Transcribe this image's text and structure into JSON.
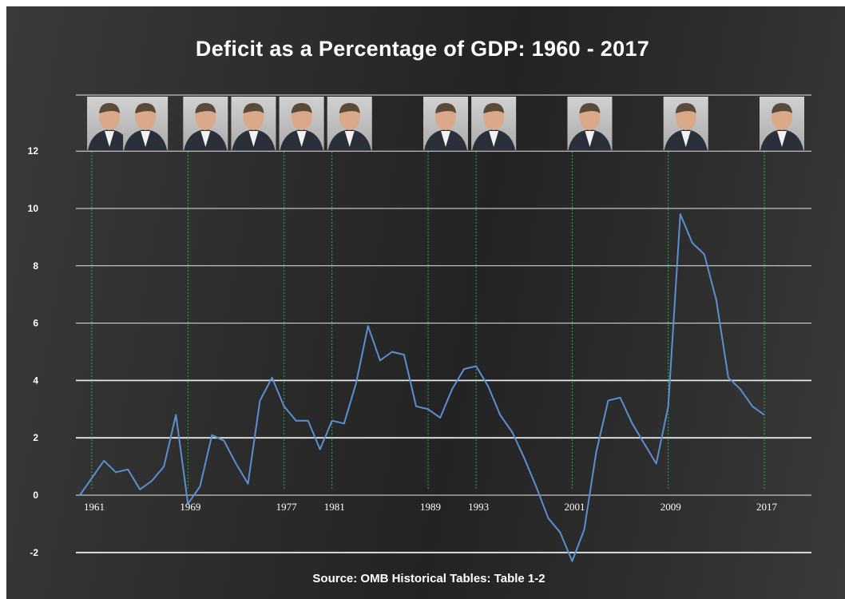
{
  "chart_data": {
    "type": "line",
    "title": "Deficit as a Percentage of GDP: 1960 - 2017",
    "source": "Source: OMB Historical Tables: Table 1-2",
    "xlabel": "",
    "ylabel": "",
    "ylim": [
      -2,
      12
    ],
    "xlim": [
      1960,
      2017
    ],
    "yticks": [
      -2,
      0,
      2,
      4,
      6,
      8,
      10,
      12
    ],
    "xticks": [
      1961,
      1969,
      1977,
      1981,
      1989,
      1993,
      2001,
      2009,
      2017
    ],
    "grid": "horizontal",
    "legend": "none",
    "line_color": "#5b8fd1",
    "term_line_color": "#2eaa4a",
    "administration_starts": [
      1961,
      1969,
      1977,
      1981,
      1989,
      1993,
      2001,
      2009,
      2017
    ],
    "portraits": [
      {
        "name": "portrait-kennedy",
        "year": 1961
      },
      {
        "name": "portrait-johnson",
        "year": 1964
      },
      {
        "name": "portrait-nixon",
        "year": 1969
      },
      {
        "name": "portrait-ford",
        "year": 1973
      },
      {
        "name": "portrait-carter",
        "year": 1977
      },
      {
        "name": "portrait-reagan",
        "year": 1981
      },
      {
        "name": "portrait-bush-sr",
        "year": 1989
      },
      {
        "name": "portrait-clinton",
        "year": 1993
      },
      {
        "name": "portrait-bush-jr",
        "year": 2001
      },
      {
        "name": "portrait-obama",
        "year": 2009
      },
      {
        "name": "portrait-trump",
        "year": 2017
      }
    ],
    "series": [
      {
        "x": [
          1960,
          1961,
          1962,
          1963,
          1964,
          1965,
          1966,
          1967,
          1968,
          1969,
          1970,
          1971,
          1972,
          1973,
          1974,
          1975,
          1976,
          1977,
          1978,
          1979,
          1980,
          1981,
          1982,
          1983,
          1984,
          1985,
          1986,
          1987,
          1988,
          1989,
          1990,
          1991,
          1992,
          1993,
          1994,
          1995,
          1996,
          1997,
          1998,
          1999,
          2000,
          2001,
          2002,
          2003,
          2004,
          2005,
          2006,
          2007,
          2008,
          2009,
          2010,
          2011,
          2012,
          2013,
          2014,
          2015,
          2016,
          2017
        ],
        "values": [
          0.0,
          0.6,
          1.2,
          0.8,
          0.9,
          0.2,
          0.5,
          1.0,
          2.8,
          -0.3,
          0.3,
          2.1,
          1.9,
          1.1,
          0.4,
          3.3,
          4.1,
          3.1,
          2.6,
          2.6,
          1.6,
          2.6,
          2.5,
          3.9,
          5.9,
          4.7,
          5.0,
          4.9,
          3.1,
          3.0,
          2.7,
          3.7,
          4.4,
          4.5,
          3.8,
          2.8,
          2.2,
          1.3,
          0.3,
          -0.8,
          -1.3,
          -2.3,
          -1.2,
          1.5,
          3.3,
          3.4,
          2.5,
          1.8,
          1.1,
          3.1,
          9.8,
          8.8,
          8.4,
          6.8,
          4.1,
          3.7,
          3.1,
          2.8
        ]
      }
    ]
  }
}
